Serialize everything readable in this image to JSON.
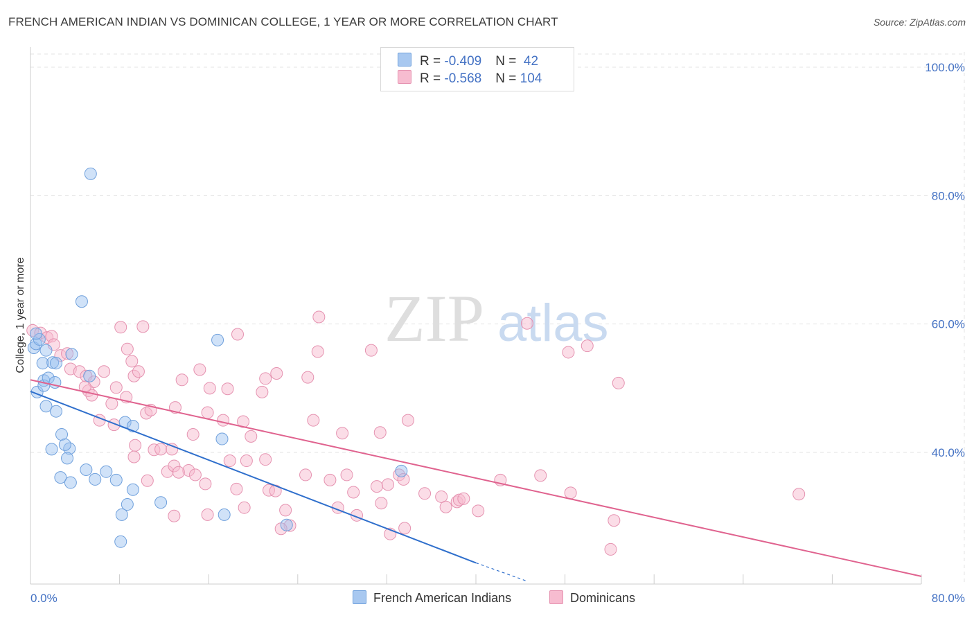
{
  "title": "FRENCH AMERICAN INDIAN VS DOMINICAN COLLEGE, 1 YEAR OR MORE CORRELATION CHART",
  "source": "Source: ZipAtlas.com",
  "watermark": {
    "zip": "ZIP",
    "atlas": "atlas"
  },
  "legend_top": [
    {
      "r_label": "R = ",
      "r_value": "-0.409",
      "n_label": "N = ",
      "n_value": " 42",
      "color": "#a8c8f0",
      "border": "#6fa0dc"
    },
    {
      "r_label": "R = ",
      "r_value": "-0.568",
      "n_label": "N = ",
      "n_value": "104",
      "color": "#f7bcd0",
      "border": "#e592b0"
    }
  ],
  "legend_bottom": [
    {
      "label": "French American Indians",
      "color": "#a8c8f0",
      "border": "#6fa0dc"
    },
    {
      "label": "Dominicans",
      "color": "#f7bcd0",
      "border": "#e592b0"
    }
  ],
  "chart_data": {
    "type": "scatter",
    "title": "FRENCH AMERICAN INDIAN VS DOMINICAN COLLEGE, 1 YEAR OR MORE CORRELATION CHART",
    "xlabel": "",
    "ylabel": "College, 1 year or more",
    "xlim": [
      0,
      80
    ],
    "ylim": [
      19,
      102
    ],
    "x_tick_labels": [
      "0.0%",
      "80.0%"
    ],
    "y_ticks": [
      40,
      60,
      80,
      100
    ],
    "y_tick_labels": [
      "40.0%",
      "60.0%",
      "80.0%",
      "100.0%"
    ],
    "grid": true,
    "series": [
      {
        "name": "French American Indians",
        "color": "#6fa0dc",
        "fill": "rgba(150,190,240,0.45)",
        "line_color": "#2f6fcc",
        "trend": {
          "x0": 0,
          "y0": 49.5,
          "x1": 40,
          "y1": 22.8,
          "x_dash_end": 44.5,
          "y_dash_end": 20
        },
        "points": [
          [
            0.3,
            56.3
          ],
          [
            0.5,
            56.9
          ],
          [
            0.8,
            57.6
          ],
          [
            1.1,
            53.9
          ],
          [
            0.6,
            49.4
          ],
          [
            1.2,
            51.2
          ],
          [
            1.2,
            50.4
          ],
          [
            1.6,
            51.6
          ],
          [
            1.4,
            55.9
          ],
          [
            2.0,
            54.0
          ],
          [
            2.2,
            50.9
          ],
          [
            2.3,
            53.9
          ],
          [
            3.7,
            55.3
          ],
          [
            4.6,
            63.5
          ],
          [
            5.3,
            51.9
          ],
          [
            1.4,
            47.2
          ],
          [
            2.3,
            46.4
          ],
          [
            2.8,
            42.8
          ],
          [
            3.5,
            40.6
          ],
          [
            3.1,
            41.2
          ],
          [
            1.9,
            40.5
          ],
          [
            3.3,
            39.1
          ],
          [
            2.7,
            36.1
          ],
          [
            3.6,
            35.3
          ],
          [
            5.0,
            37.3
          ],
          [
            5.8,
            35.8
          ],
          [
            6.8,
            37.0
          ],
          [
            7.7,
            35.7
          ],
          [
            8.5,
            44.7
          ],
          [
            9.2,
            44.1
          ],
          [
            9.2,
            34.2
          ],
          [
            8.7,
            31.9
          ],
          [
            8.2,
            30.3
          ],
          [
            11.7,
            32.2
          ],
          [
            8.1,
            26.1
          ],
          [
            16.8,
            57.5
          ],
          [
            17.2,
            42.1
          ],
          [
            17.4,
            30.3
          ],
          [
            23.0,
            28.7
          ],
          [
            33.3,
            37.1
          ],
          [
            5.4,
            83.4
          ],
          [
            0.5,
            58.5
          ]
        ]
      },
      {
        "name": "Dominicans",
        "color": "#e592b0",
        "fill": "rgba(247,188,208,0.5)",
        "line_color": "#e0638f",
        "trend": {
          "x0": 0,
          "y0": 51.3,
          "x1": 80,
          "y1": 20.7
        },
        "points": [
          [
            0.2,
            59.0
          ],
          [
            0.9,
            58.6
          ],
          [
            1.5,
            57.9
          ],
          [
            1.9,
            58.1
          ],
          [
            2.1,
            56.8
          ],
          [
            2.7,
            55.1
          ],
          [
            3.3,
            55.4
          ],
          [
            3.6,
            53.0
          ],
          [
            4.4,
            52.6
          ],
          [
            5.0,
            51.9
          ],
          [
            5.2,
            49.6
          ],
          [
            5.5,
            48.9
          ],
          [
            5.7,
            51.0
          ],
          [
            4.9,
            50.2
          ],
          [
            6.6,
            52.6
          ],
          [
            7.3,
            47.6
          ],
          [
            7.7,
            50.1
          ],
          [
            8.1,
            59.5
          ],
          [
            8.7,
            56.1
          ],
          [
            9.1,
            54.2
          ],
          [
            9.3,
            51.9
          ],
          [
            9.7,
            52.6
          ],
          [
            10.1,
            59.6
          ],
          [
            10.4,
            46.1
          ],
          [
            10.8,
            46.6
          ],
          [
            6.2,
            45.0
          ],
          [
            7.5,
            44.3
          ],
          [
            9.4,
            41.1
          ],
          [
            11.1,
            40.4
          ],
          [
            11.7,
            40.5
          ],
          [
            12.7,
            40.5
          ],
          [
            13.6,
            51.3
          ],
          [
            13.0,
            47.0
          ],
          [
            15.2,
            52.9
          ],
          [
            15.9,
            46.2
          ],
          [
            16.1,
            50.0
          ],
          [
            17.7,
            49.9
          ],
          [
            17.3,
            45.0
          ],
          [
            18.6,
            58.4
          ],
          [
            19.1,
            44.8
          ],
          [
            19.8,
            42.5
          ],
          [
            20.8,
            49.4
          ],
          [
            22.1,
            52.3
          ],
          [
            24.9,
            51.7
          ],
          [
            25.4,
            45.0
          ],
          [
            25.9,
            61.1
          ],
          [
            28.0,
            43.0
          ],
          [
            30.6,
            55.9
          ],
          [
            31.4,
            43.1
          ],
          [
            33.9,
            45.0
          ],
          [
            14.6,
            42.8
          ],
          [
            14.2,
            37.2
          ],
          [
            12.3,
            37.0
          ],
          [
            12.9,
            37.9
          ],
          [
            14.8,
            36.5
          ],
          [
            15.7,
            35.1
          ],
          [
            17.9,
            38.7
          ],
          [
            19.4,
            38.7
          ],
          [
            21.1,
            38.9
          ],
          [
            21.4,
            34.1
          ],
          [
            22.0,
            34.0
          ],
          [
            22.9,
            31.0
          ],
          [
            23.3,
            28.6
          ],
          [
            24.7,
            36.5
          ],
          [
            26.9,
            35.7
          ],
          [
            28.4,
            36.5
          ],
          [
            29.0,
            33.8
          ],
          [
            29.3,
            30.2
          ],
          [
            31.1,
            34.7
          ],
          [
            31.5,
            32.1
          ],
          [
            32.1,
            35.0
          ],
          [
            33.1,
            36.5
          ],
          [
            33.5,
            35.8
          ],
          [
            35.4,
            33.6
          ],
          [
            36.9,
            33.1
          ],
          [
            37.3,
            31.5
          ],
          [
            38.3,
            32.3
          ],
          [
            38.5,
            32.6
          ],
          [
            38.9,
            32.8
          ],
          [
            40.2,
            30.9
          ],
          [
            42.2,
            35.7
          ],
          [
            45.8,
            36.4
          ],
          [
            48.5,
            33.7
          ],
          [
            52.4,
            29.4
          ],
          [
            52.8,
            50.8
          ],
          [
            48.3,
            55.6
          ],
          [
            50.0,
            56.6
          ],
          [
            44.6,
            60.1
          ],
          [
            21.1,
            51.5
          ],
          [
            25.8,
            55.7
          ],
          [
            15.9,
            30.3
          ],
          [
            12.9,
            30.1
          ],
          [
            18.5,
            34.3
          ],
          [
            22.5,
            28.1
          ],
          [
            19.2,
            31.4
          ],
          [
            27.6,
            31.4
          ],
          [
            13.3,
            36.9
          ],
          [
            10.5,
            35.6
          ],
          [
            8.6,
            48.6
          ],
          [
            9.3,
            39.3
          ],
          [
            32.3,
            27.3
          ],
          [
            33.6,
            28.2
          ],
          [
            52.1,
            24.9
          ],
          [
            69.0,
            33.5
          ]
        ]
      }
    ]
  }
}
